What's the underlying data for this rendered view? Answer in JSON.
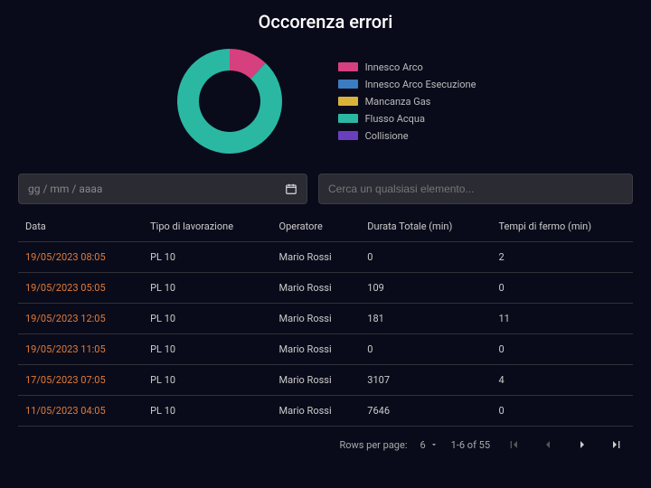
{
  "title": "Occorenza errori",
  "chart": {
    "type": "donut",
    "inner_radius": 34,
    "outer_radius": 58,
    "background": "#0a0b1a",
    "slices": [
      {
        "label": "Innesco Arco",
        "color": "#d6407e",
        "value": 12
      },
      {
        "label": "Innesco Arco Esecuzione",
        "color": "#3b7bbf",
        "value": 0
      },
      {
        "label": "Mancanza Gas",
        "color": "#d9b23c",
        "value": 0
      },
      {
        "label": "Flusso Acqua",
        "color": "#2bb8a3",
        "value": 88
      },
      {
        "label": "Collisione",
        "color": "#6a3fbf",
        "value": 0
      }
    ]
  },
  "filters": {
    "date_placeholder": "gg / mm / aaaa",
    "search_placeholder": "Cerca un qualsiasi elemento..."
  },
  "table": {
    "columns": [
      "Data",
      "Tipo di lavorazione",
      "Operatore",
      "Durata Totale (min)",
      "Tempi di fermo (min)"
    ],
    "rows": [
      [
        "19/05/2023 08:05",
        "PL 10",
        "Mario Rossi",
        "0",
        "2"
      ],
      [
        "19/05/2023 05:05",
        "PL 10",
        "Mario Rossi",
        "109",
        "0"
      ],
      [
        "19/05/2023 12:05",
        "PL 10",
        "Mario Rossi",
        "181",
        "11"
      ],
      [
        "19/05/2023 11:05",
        "PL 10",
        "Mario Rossi",
        "0",
        "0"
      ],
      [
        "17/05/2023 07:05",
        "PL 10",
        "Mario Rossi",
        "3107",
        "4"
      ],
      [
        "11/05/2023 04:05",
        "PL 10",
        "Mario Rossi",
        "7646",
        "0"
      ]
    ]
  },
  "pagination": {
    "rows_per_page_label": "Rows per page:",
    "rows_per_page_value": "6",
    "range_text": "1-6 of 55"
  }
}
